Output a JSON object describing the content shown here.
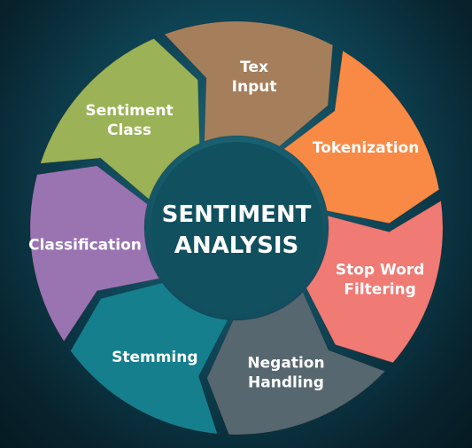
{
  "center": {
    "line1": "SENTIMENT",
    "line2": "ANALYSIS",
    "color": "#11505f"
  },
  "segments": [
    {
      "id": "tex-input",
      "lines": [
        "Tex",
        "Input"
      ],
      "color": "#a57f5c"
    },
    {
      "id": "tokenization",
      "lines": [
        "Tokenization"
      ],
      "color": "#f98a45"
    },
    {
      "id": "stop-word-filtering",
      "lines": [
        "Stop Word",
        "Filtering"
      ],
      "color": "#f07a74"
    },
    {
      "id": "negation-handling",
      "lines": [
        "Negation",
        "Handling"
      ],
      "color": "#56676f"
    },
    {
      "id": "stemming",
      "lines": [
        "Stemming"
      ],
      "color": "#157f8e"
    },
    {
      "id": "classification",
      "lines": [
        "Classification"
      ],
      "color": "#9a74b1"
    },
    {
      "id": "sentiment-class",
      "lines": [
        "Sentiment",
        "Class"
      ],
      "color": "#9bb257"
    }
  ]
}
